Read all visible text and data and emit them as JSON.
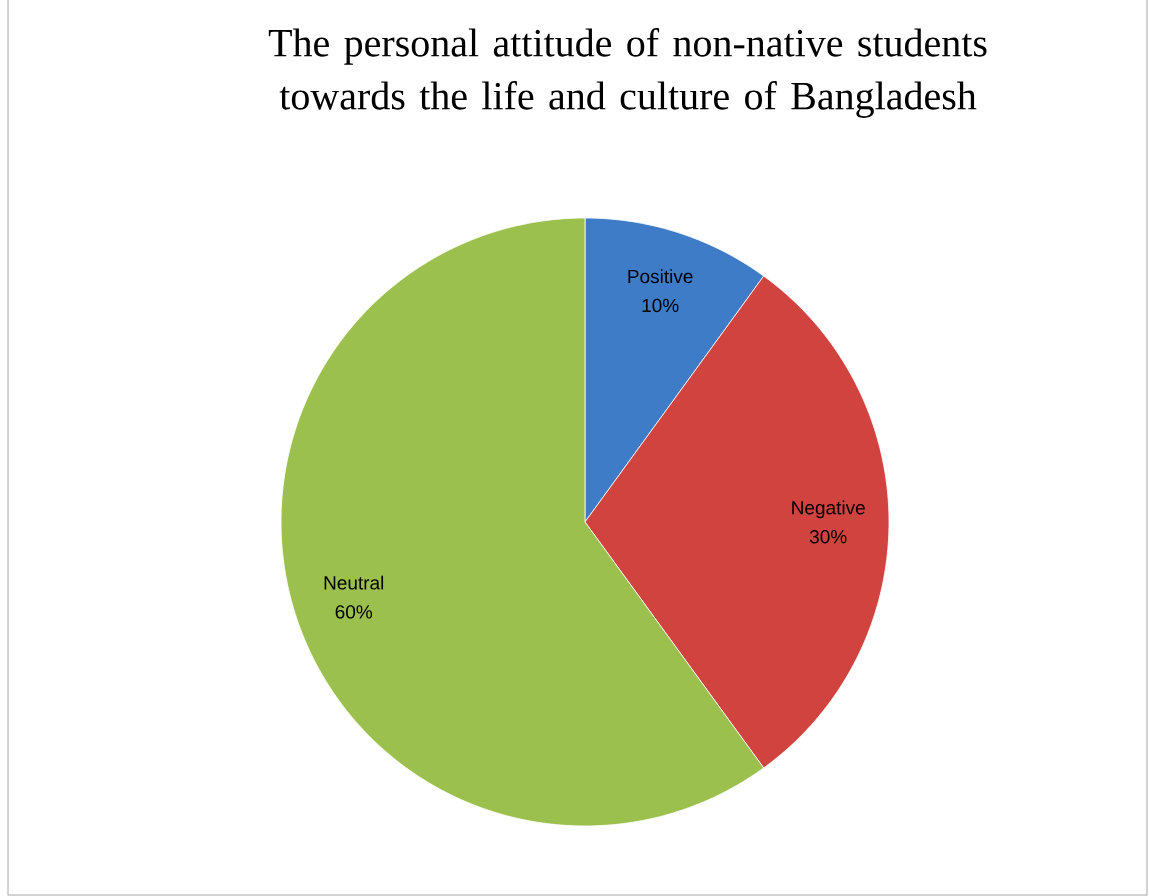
{
  "chart_data": {
    "type": "pie",
    "title": "The personal attitude of non-native students towards the life and culture of Bangladesh",
    "categories": [
      "Positive",
      "Negative",
      "Neutral"
    ],
    "values": [
      10,
      30,
      60
    ],
    "colors": [
      "#3f7cc8",
      "#d0433f",
      "#9cc04e"
    ],
    "value_labels": [
      "10%",
      "30%",
      "60%"
    ]
  }
}
